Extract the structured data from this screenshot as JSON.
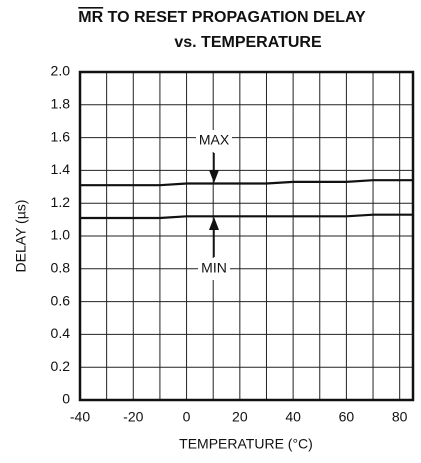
{
  "chart_data": {
    "type": "line",
    "title": {
      "overlined": "MR",
      "text": "TO RESET PROPAGATION DELAY"
    },
    "subtitle": "vs. TEMPERATURE",
    "x_label": "TEMPERATURE (°C)",
    "y_label": "DELAY (µs)",
    "series": [
      {
        "name": "MAX",
        "color": "#111111",
        "x": [
          -40,
          -10,
          0,
          30,
          40,
          60,
          70,
          85
        ],
        "values": [
          1.31,
          1.31,
          1.32,
          1.32,
          1.33,
          1.33,
          1.34,
          1.34
        ]
      },
      {
        "name": "MIN",
        "color": "#111111",
        "x": [
          -40,
          -10,
          0,
          30,
          40,
          60,
          70,
          85
        ],
        "values": [
          1.11,
          1.11,
          1.12,
          1.12,
          1.12,
          1.12,
          1.13,
          1.13
        ]
      }
    ],
    "xlim": [
      -40,
      85
    ],
    "xticks": [
      -40,
      -20,
      0,
      20,
      40,
      60,
      80
    ],
    "xminor": [
      -30,
      -10,
      10,
      30,
      50,
      70
    ],
    "ylim": [
      0,
      2
    ],
    "yticks": [
      0,
      {
        "value": 0.2,
        "label": "0.2"
      },
      {
        "value": 0.4,
        "label": "0.4"
      },
      {
        "value": 0.6,
        "label": "0.6"
      },
      {
        "value": 0.8,
        "label": "0.8"
      },
      {
        "value": 1,
        "label": "1.0"
      },
      {
        "value": 1.2,
        "label": "1.2"
      },
      {
        "value": 1.4,
        "label": "1.4"
      },
      {
        "value": 1.6,
        "label": "1.6"
      },
      {
        "value": 1.8,
        "label": "1.8"
      },
      {
        "value": 2,
        "label": "2.0"
      }
    ],
    "grid": true
  }
}
